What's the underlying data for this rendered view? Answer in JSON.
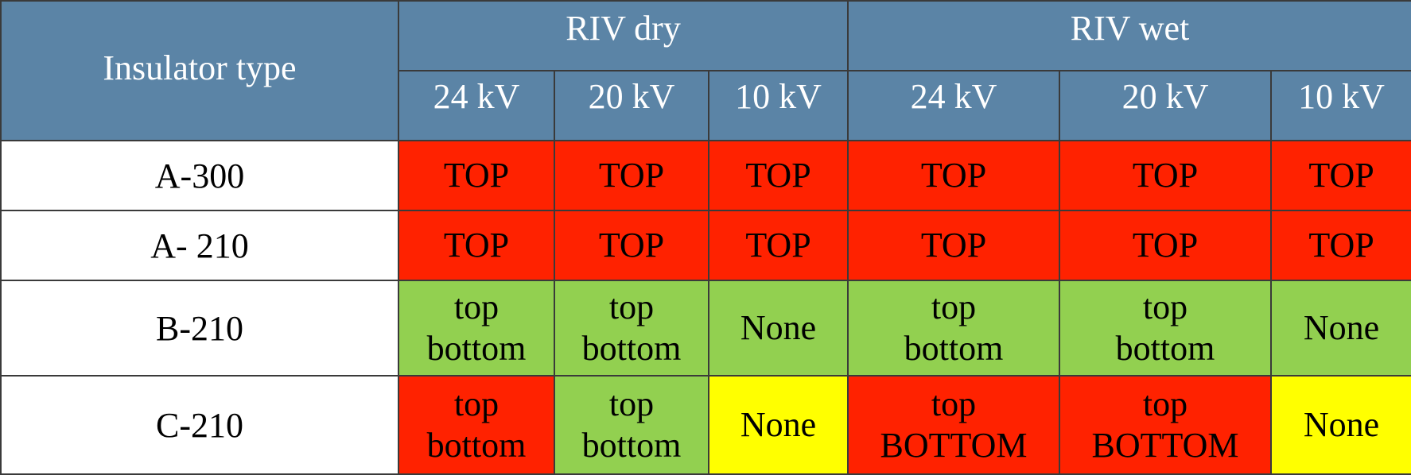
{
  "header": {
    "insulator_type": "Insulator type",
    "groups": [
      "RIV dry",
      "RIV wet"
    ],
    "voltages": [
      "24 kV",
      "20 kV",
      "10 kV",
      "24 kV",
      "20 kV",
      "10 kV"
    ]
  },
  "colors": {
    "header": "#5b84a6",
    "red": "#ff2200",
    "green": "#92d050",
    "yellow": "#ffff00"
  },
  "rows": [
    {
      "type": "A-300",
      "cells": [
        {
          "lines": [
            "TOP"
          ],
          "color": "red"
        },
        {
          "lines": [
            "TOP"
          ],
          "color": "red"
        },
        {
          "lines": [
            "TOP"
          ],
          "color": "red"
        },
        {
          "lines": [
            "TOP"
          ],
          "color": "red"
        },
        {
          "lines": [
            "TOP"
          ],
          "color": "red"
        },
        {
          "lines": [
            "TOP"
          ],
          "color": "red"
        }
      ]
    },
    {
      "type": "A- 210",
      "cells": [
        {
          "lines": [
            "TOP"
          ],
          "color": "red"
        },
        {
          "lines": [
            "TOP"
          ],
          "color": "red"
        },
        {
          "lines": [
            "TOP"
          ],
          "color": "red"
        },
        {
          "lines": [
            "TOP"
          ],
          "color": "red"
        },
        {
          "lines": [
            "TOP"
          ],
          "color": "red"
        },
        {
          "lines": [
            "TOP"
          ],
          "color": "red"
        }
      ]
    },
    {
      "type": "B-210",
      "cells": [
        {
          "lines": [
            "top",
            "bottom"
          ],
          "color": "green"
        },
        {
          "lines": [
            "top",
            "bottom"
          ],
          "color": "green"
        },
        {
          "lines": [
            "None"
          ],
          "color": "green"
        },
        {
          "lines": [
            "top",
            "bottom"
          ],
          "color": "green"
        },
        {
          "lines": [
            "top",
            "bottom"
          ],
          "color": "green"
        },
        {
          "lines": [
            "None"
          ],
          "color": "green"
        }
      ]
    },
    {
      "type": "C-210",
      "cells": [
        {
          "lines": [
            "top",
            "bottom"
          ],
          "color": "red"
        },
        {
          "lines": [
            "top",
            "bottom"
          ],
          "color": "green"
        },
        {
          "lines": [
            "None"
          ],
          "color": "yellow"
        },
        {
          "lines": [
            "top",
            "BOTTOM"
          ],
          "color": "red"
        },
        {
          "lines": [
            "top",
            "BOTTOM"
          ],
          "color": "red"
        },
        {
          "lines": [
            "None"
          ],
          "color": "yellow"
        }
      ]
    }
  ]
}
